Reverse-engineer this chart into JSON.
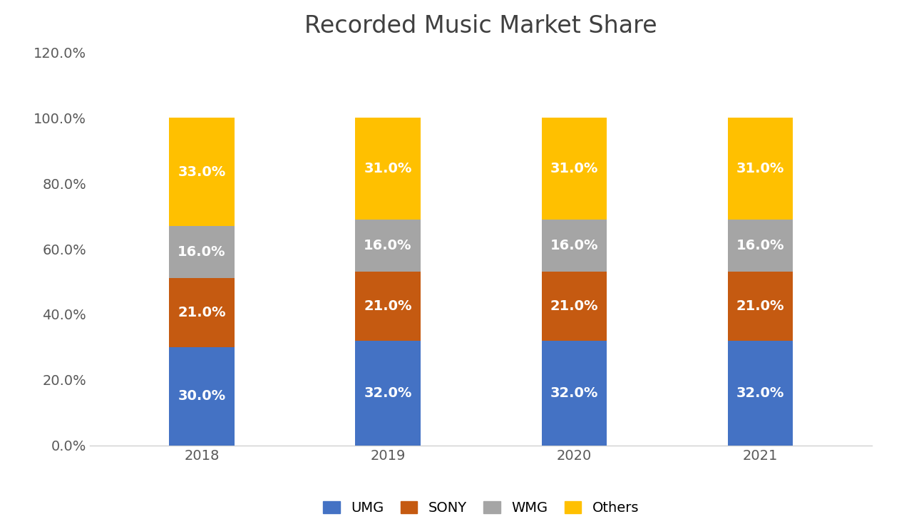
{
  "title": "Recorded Music Market Share",
  "categories": [
    "2018",
    "2019",
    "2020",
    "2021"
  ],
  "series": {
    "UMG": [
      30.0,
      32.0,
      32.0,
      32.0
    ],
    "SONY": [
      21.0,
      21.0,
      21.0,
      21.0
    ],
    "WMG": [
      16.0,
      16.0,
      16.0,
      16.0
    ],
    "Others": [
      33.0,
      31.0,
      31.0,
      31.0
    ]
  },
  "colors": {
    "UMG": "#4472C4",
    "SONY": "#C55A11",
    "WMG": "#A5A5A5",
    "Others": "#FFC000"
  },
  "ylim": [
    0,
    120
  ],
  "yticks": [
    0,
    20,
    40,
    60,
    80,
    100,
    120
  ],
  "bar_width": 0.35,
  "title_fontsize": 24,
  "tick_fontsize": 14,
  "label_fontsize": 14,
  "legend_fontsize": 14,
  "background_color": "#ffffff",
  "label_color": "#ffffff",
  "title_color": "#404040",
  "tick_color": "#595959"
}
